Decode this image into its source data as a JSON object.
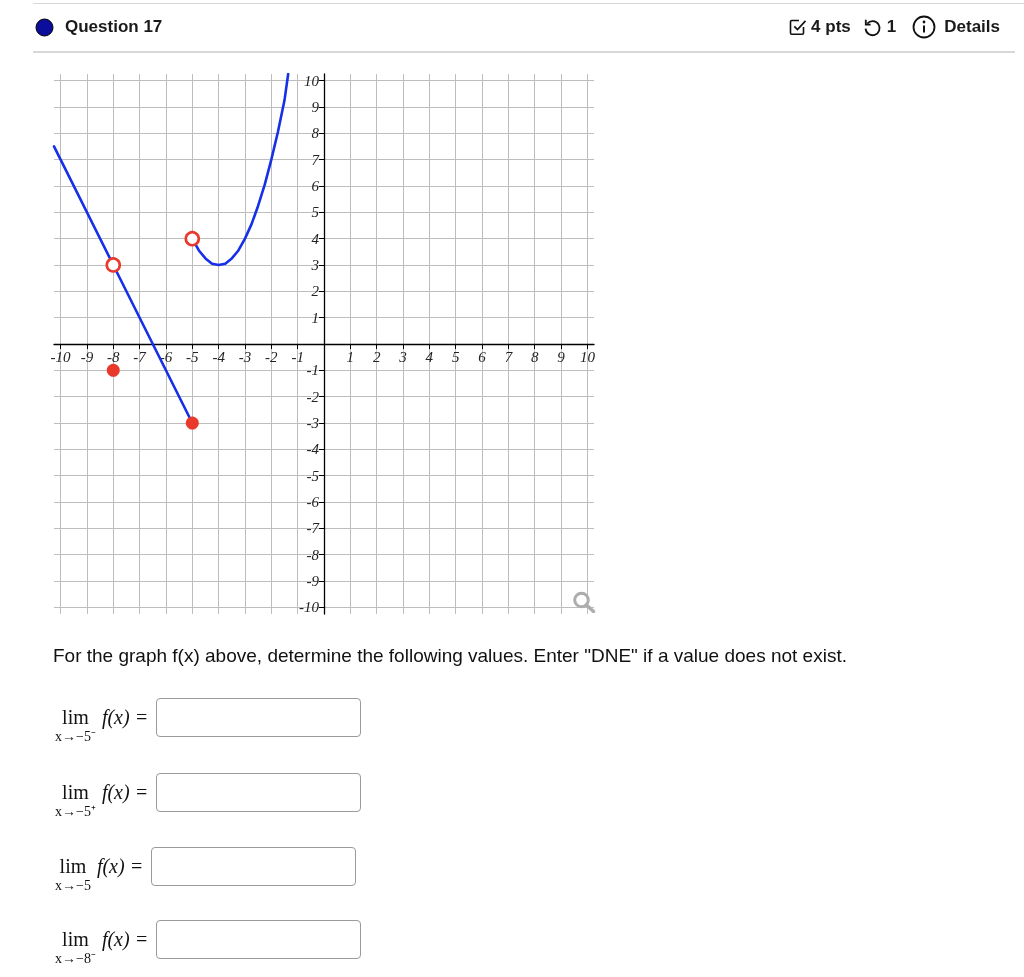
{
  "chart_data": {
    "type": "line",
    "title": "Question 17",
    "annotations": [
      "4 pts",
      "1",
      "Details",
      "For the graph f(x) above, determine the following values. Enter \"DNE\" if a value does not exist.",
      "lim$_{x→−5⁻}$ f(x) =",
      "lim$_{x→−5⁺}$ f(x) =",
      "lim$_{x→−5}$ f(x) =",
      "lim$_{x→−8⁻}$ f(x) ="
    ],
    "xlim": [
      -10.25,
      10.25
    ],
    "ylim": [
      -10.25,
      10.25
    ],
    "xticks": [
      -10,
      -9,
      -8,
      -7,
      -6,
      -5,
      -4,
      -3,
      -2,
      -1,
      1,
      2,
      3,
      4,
      5,
      6,
      7,
      8,
      9,
      10
    ],
    "yticks": [
      -10,
      -9,
      -8,
      -7,
      -6,
      -5,
      -4,
      -3,
      -2,
      -1,
      1,
      2,
      3,
      4,
      5,
      6,
      7,
      8,
      9,
      10
    ],
    "grid": true,
    "series": [
      {
        "type": "line",
        "color": "#1530e8",
        "marker": "none",
        "x": [
          -10.25,
          -8,
          -5
        ],
        "values": [
          7.5,
          3,
          -3
        ]
      },
      {
        "type": "line",
        "color": "#1530e8",
        "marker": "none",
        "x": [
          -5,
          -4.75,
          -4.5,
          -4.25,
          -4,
          -3.75,
          -3.5,
          -3.25,
          -3,
          -2.75,
          -2.5,
          -2.25,
          -2,
          -1.75,
          -1.5,
          -1.36
        ],
        "values": [
          4,
          3.55,
          3.25,
          3.05,
          3,
          3.05,
          3.25,
          3.55,
          4,
          4.55,
          5.25,
          6.05,
          7,
          8.05,
          9.25,
          10.25
        ]
      },
      {
        "type": "scatter",
        "color": "#e8392b",
        "marker": "circle-open",
        "x": [
          -8,
          -5
        ],
        "values": [
          3,
          4
        ]
      },
      {
        "type": "scatter",
        "color": "#e8392b",
        "marker": "circle",
        "x": [
          -8,
          -5
        ],
        "values": [
          -1,
          -3
        ]
      }
    ]
  }
}
